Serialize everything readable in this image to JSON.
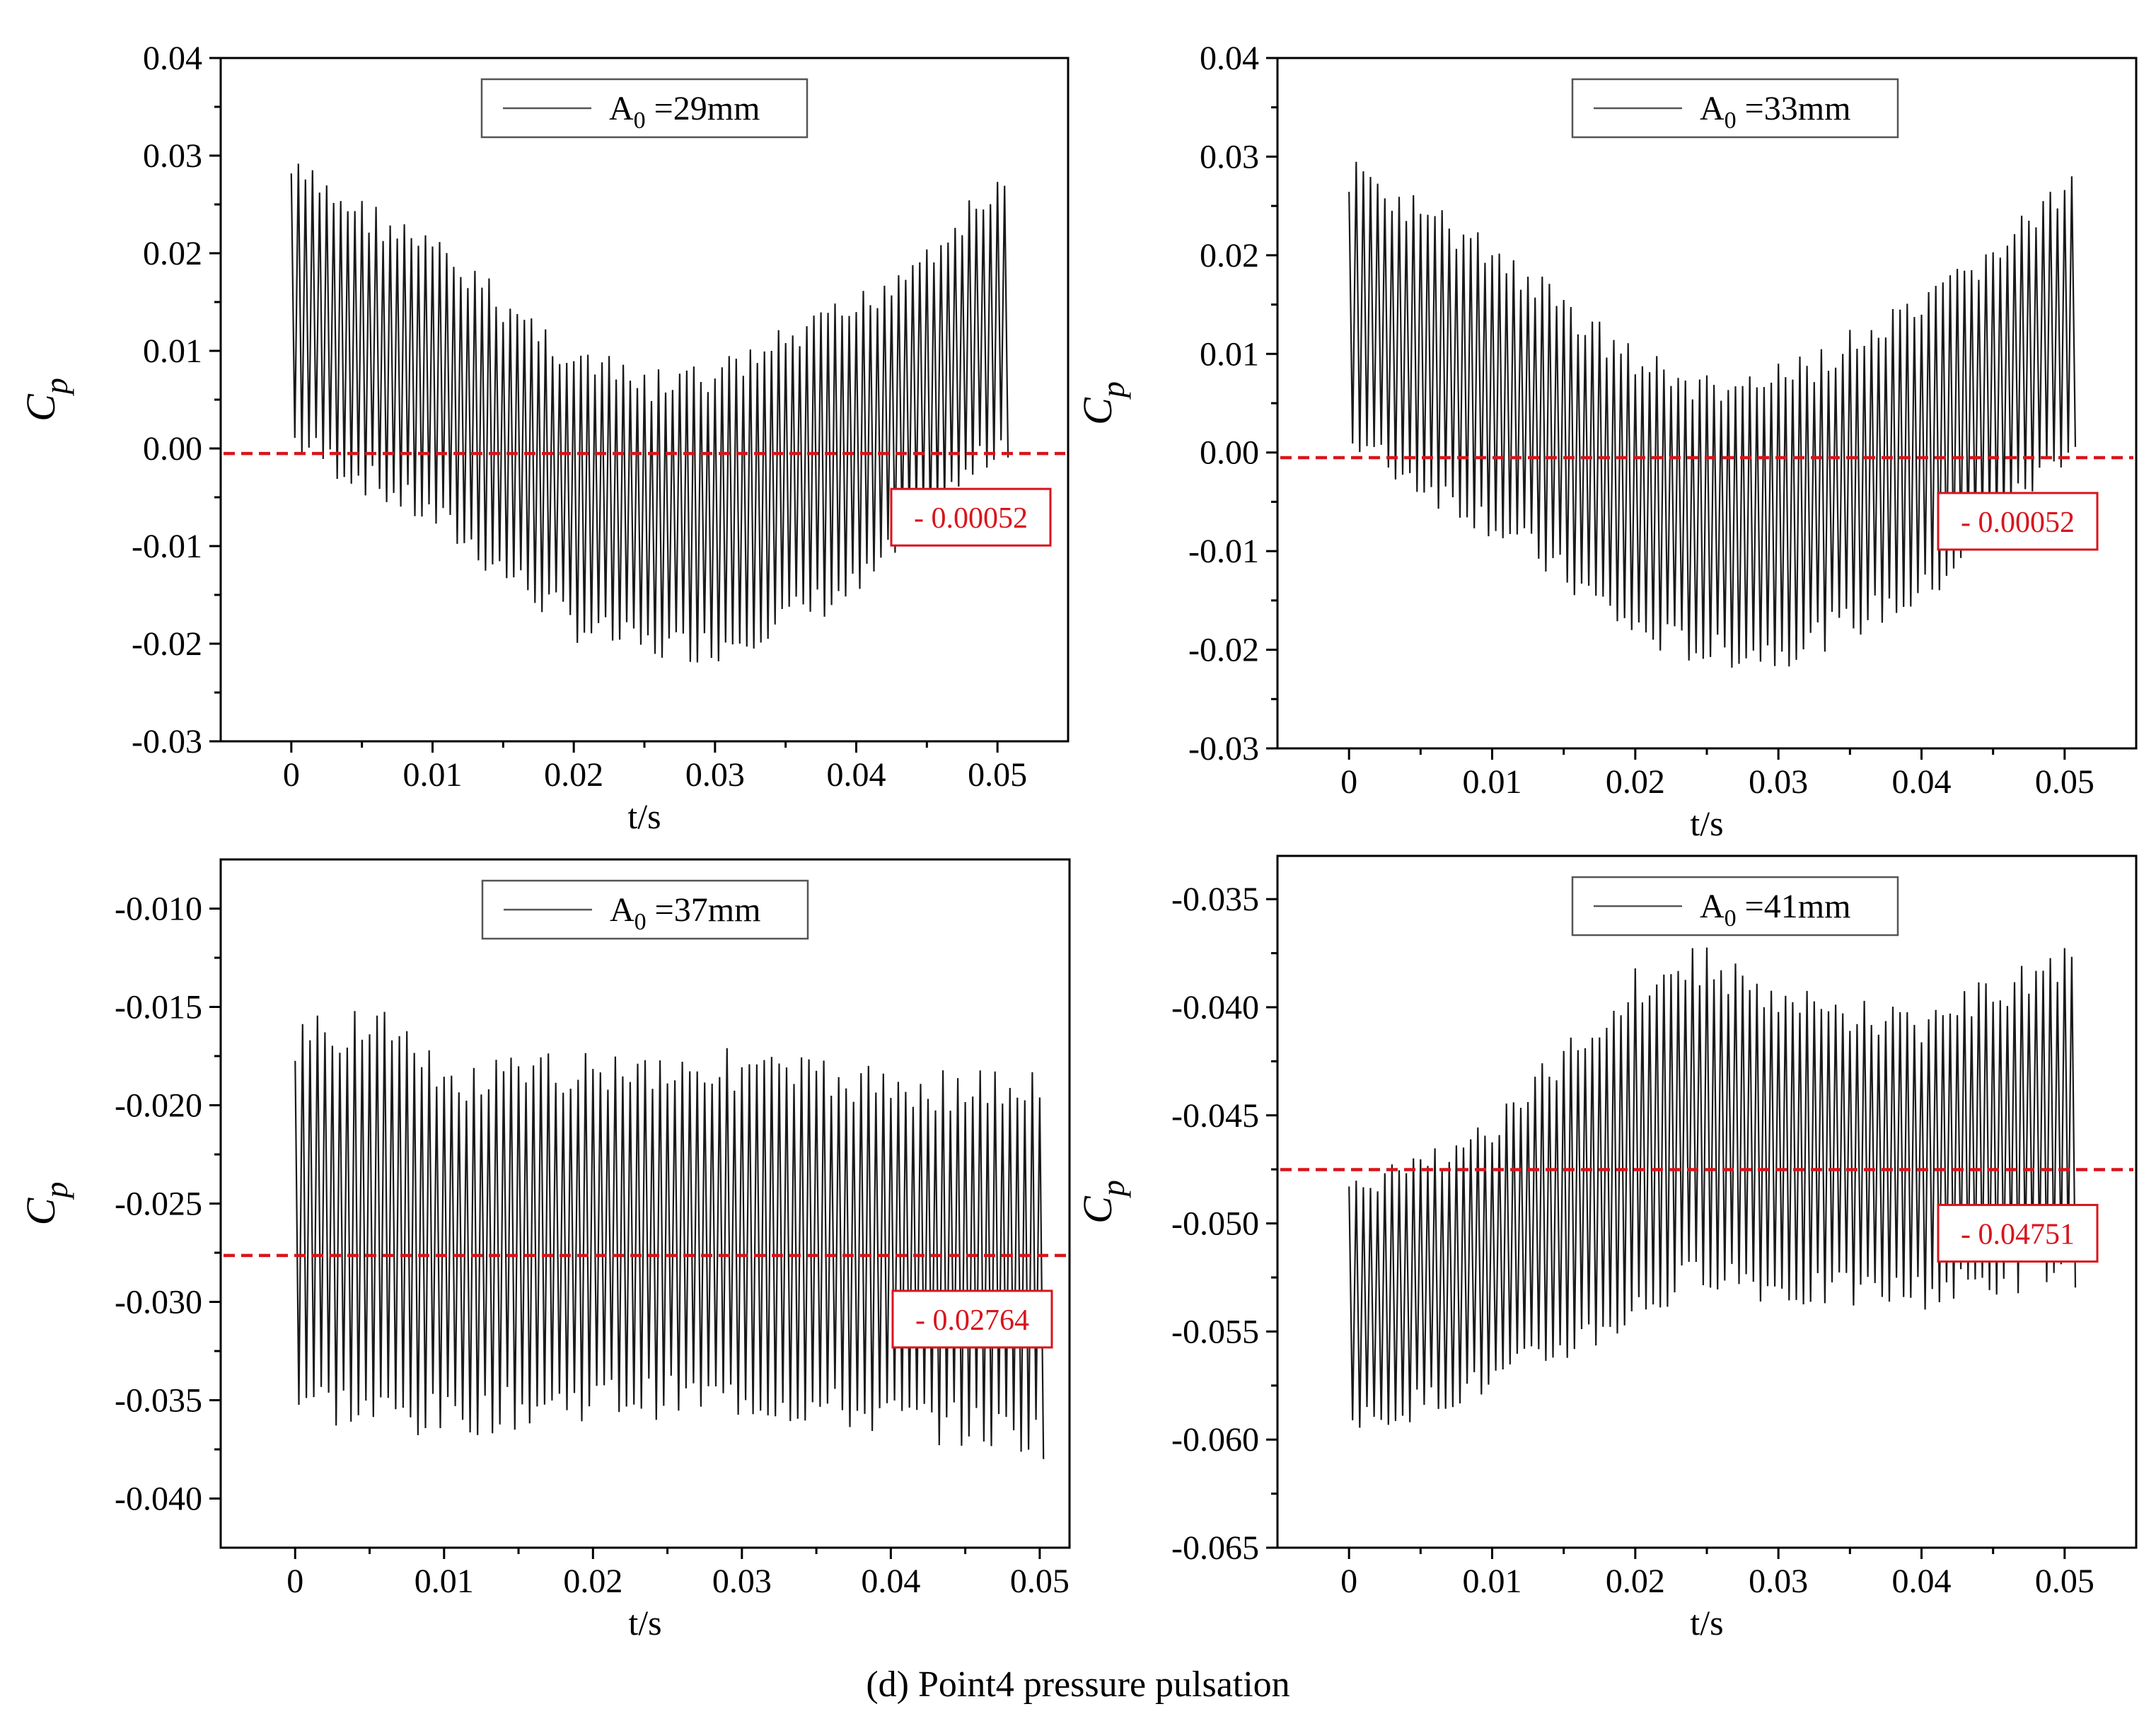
{
  "figure": {
    "caption": "(d) Point4 pressure pulsation",
    "colors": {
      "signal": "#1a1a1a",
      "mean_line": "#d9141c",
      "axis": "#000000",
      "box_border": "#d9141c",
      "legend_border": "#555555"
    }
  },
  "chart_data": [
    {
      "type": "line",
      "panel": "top-left",
      "xlabel": "t/s",
      "ylabel_main": "C",
      "ylabel_sub": "p",
      "xlim": [
        -0.005,
        0.055
      ],
      "ylim": [
        -0.03,
        0.04
      ],
      "x_ticks": [
        0,
        0.01,
        0.02,
        0.03,
        0.04,
        0.05
      ],
      "x_tick_labels": [
        "0",
        "0.01",
        "0.02",
        "0.03",
        "0.04",
        "0.05"
      ],
      "y_ticks": [
        -0.03,
        -0.02,
        -0.01,
        0.0,
        0.01,
        0.02,
        0.03,
        0.04
      ],
      "y_tick_labels": [
        "-0.03",
        "-0.02",
        "-0.01",
        "0.00",
        "0.01",
        "0.02",
        "0.03",
        "0.04"
      ],
      "legend": {
        "prefix": "A",
        "sub": "0",
        "suffix": " =29mm"
      },
      "legend_position": "top-center",
      "series": [
        {
          "name": "A0 =29mm",
          "t_start": 0.0,
          "t_end": 0.0505,
          "period": 0.0005,
          "envelope_t": [
            0,
            0.01,
            0.02,
            0.025,
            0.03,
            0.04,
            0.05
          ],
          "envelope_max": [
            0.03,
            0.022,
            0.011,
            0.008,
            0.009,
            0.016,
            0.028
          ],
          "envelope_min": [
            -0.001,
            -0.009,
            -0.02,
            -0.022,
            -0.022,
            -0.016,
            -0.001
          ]
        }
      ],
      "mean": -0.00052,
      "mean_label": "- 0.00052",
      "mean_label_position": "right-below-line"
    },
    {
      "type": "line",
      "panel": "top-right",
      "xlabel": "t/s",
      "ylabel_main": "C",
      "ylabel_sub": "p",
      "xlim": [
        -0.005,
        0.055
      ],
      "ylim": [
        -0.03,
        0.04
      ],
      "x_ticks": [
        0,
        0.01,
        0.02,
        0.03,
        0.04,
        0.05
      ],
      "x_tick_labels": [
        "0",
        "0.01",
        "0.02",
        "0.03",
        "0.04",
        "0.05"
      ],
      "y_ticks": [
        -0.03,
        -0.02,
        -0.01,
        0.0,
        0.01,
        0.02,
        0.03,
        0.04
      ],
      "y_tick_labels": [
        "-0.03",
        "-0.02",
        "-0.01",
        "0.00",
        "0.01",
        "0.02",
        "0.03",
        "0.04"
      ],
      "legend": {
        "prefix": "A",
        "sub": "0",
        "suffix": " =33mm"
      },
      "legend_position": "top-center",
      "series": [
        {
          "name": "A0 =33mm",
          "t_start": 0.0,
          "t_end": 0.0505,
          "period": 0.0005,
          "envelope_t": [
            0,
            0.01,
            0.02,
            0.025,
            0.03,
            0.04,
            0.05
          ],
          "envelope_max": [
            0.03,
            0.022,
            0.011,
            0.008,
            0.009,
            0.016,
            0.028
          ],
          "envelope_min": [
            -0.001,
            -0.009,
            -0.02,
            -0.022,
            -0.022,
            -0.016,
            -0.001
          ]
        }
      ],
      "mean": -0.00052,
      "mean_label": "- 0.00052",
      "mean_label_position": "right-below-line"
    },
    {
      "type": "line",
      "panel": "bottom-left",
      "xlabel": "t/s",
      "ylabel_main": "C",
      "ylabel_sub": "p",
      "xlim": [
        -0.005,
        0.052
      ],
      "ylim": [
        -0.0425,
        -0.0075
      ],
      "x_ticks": [
        0,
        0.01,
        0.02,
        0.03,
        0.04,
        0.05
      ],
      "x_tick_labels": [
        "0",
        "0.01",
        "0.02",
        "0.03",
        "0.04",
        "0.05"
      ],
      "y_ticks": [
        -0.04,
        -0.035,
        -0.03,
        -0.025,
        -0.02,
        -0.015,
        -0.01
      ],
      "y_tick_labels": [
        "-0.040",
        "-0.035",
        "-0.030",
        "-0.025",
        "-0.020",
        "-0.015",
        "-0.010"
      ],
      "legend": {
        "prefix": "A",
        "sub": "0",
        "suffix": " =37mm"
      },
      "legend_position": "top-center",
      "series": [
        {
          "name": "A0 =37mm",
          "t_start": 0.0,
          "t_end": 0.05,
          "period": 0.0005,
          "envelope_t": [
            0,
            0.005,
            0.01,
            0.02,
            0.03,
            0.04,
            0.05
          ],
          "envelope_max": [
            -0.016,
            -0.014,
            -0.018,
            -0.017,
            -0.017,
            -0.018,
            -0.018
          ],
          "envelope_min": [
            -0.036,
            -0.037,
            -0.037,
            -0.036,
            -0.036,
            -0.037,
            -0.038
          ]
        }
      ],
      "mean": -0.02764,
      "mean_label": "- 0.02764",
      "mean_label_position": "right-below-line"
    },
    {
      "type": "line",
      "panel": "bottom-right",
      "xlabel": "t/s",
      "ylabel_main": "C",
      "ylabel_sub": "p",
      "xlim": [
        -0.005,
        0.055
      ],
      "ylim": [
        -0.065,
        -0.033
      ],
      "x_ticks": [
        0,
        0.01,
        0.02,
        0.03,
        0.04,
        0.05
      ],
      "x_tick_labels": [
        "0",
        "0.01",
        "0.02",
        "0.03",
        "0.04",
        "0.05"
      ],
      "y_ticks": [
        -0.065,
        -0.06,
        -0.055,
        -0.05,
        -0.045,
        -0.04,
        -0.035
      ],
      "y_tick_labels": [
        "-0.065",
        "-0.060",
        "-0.055",
        "-0.050",
        "-0.045",
        "-0.040",
        "-0.035"
      ],
      "legend": {
        "prefix": "A",
        "sub": "0",
        "suffix": " =41mm"
      },
      "legend_position": "top-center",
      "series": [
        {
          "name": "A0 =41mm",
          "t_start": 0.0,
          "t_end": 0.0505,
          "period": 0.0005,
          "envelope_t": [
            0,
            0.01,
            0.02,
            0.025,
            0.03,
            0.04,
            0.05
          ],
          "envelope_max": [
            -0.048,
            -0.045,
            -0.038,
            -0.037,
            -0.039,
            -0.04,
            -0.037
          ],
          "envelope_min": [
            -0.06,
            -0.058,
            -0.055,
            -0.053,
            -0.054,
            -0.054,
            -0.053
          ]
        }
      ],
      "mean": -0.04751,
      "mean_label": "- 0.04751",
      "mean_label_position": "right-below-line"
    }
  ]
}
